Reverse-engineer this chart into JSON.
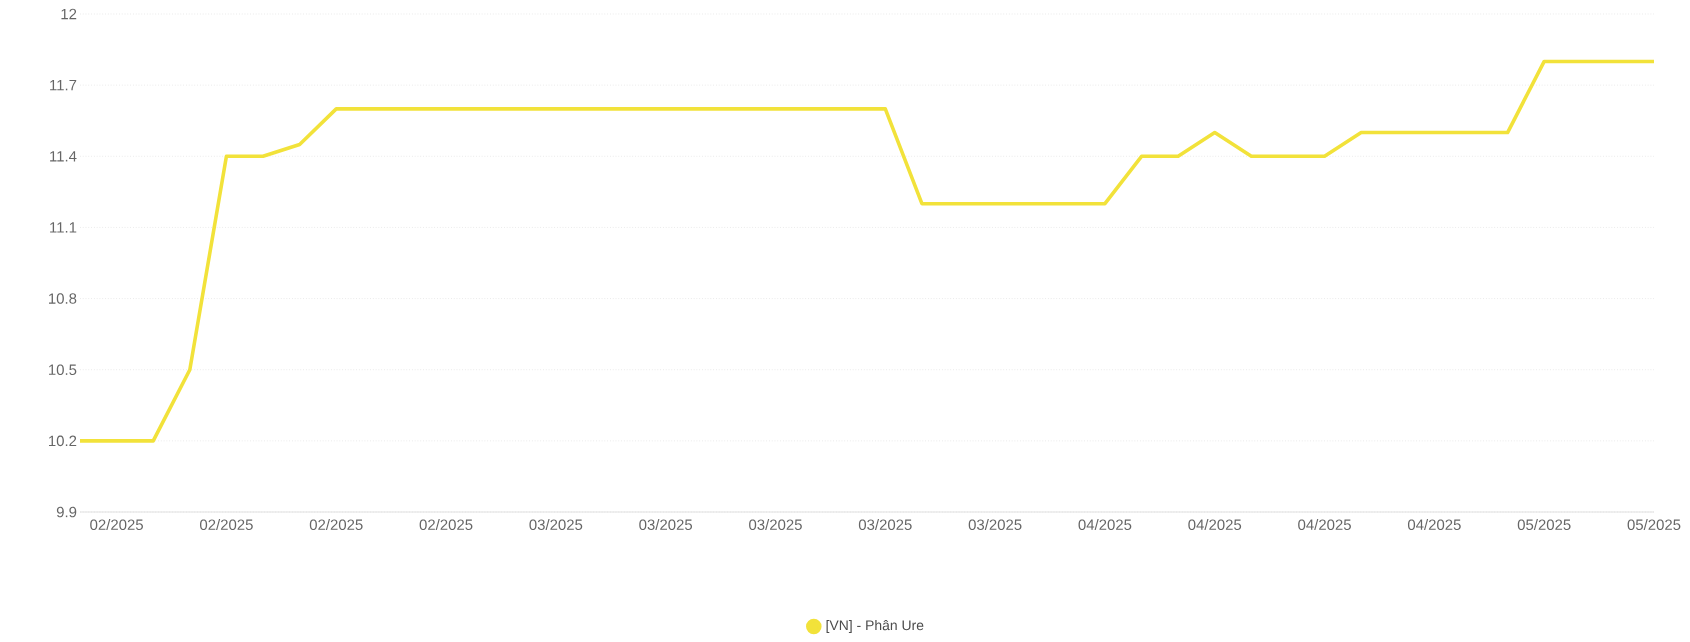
{
  "chart_data": {
    "type": "line",
    "categories": [
      null,
      "02/2025",
      null,
      null,
      "02/2025",
      null,
      null,
      "02/2025",
      null,
      null,
      "02/2025",
      null,
      null,
      "03/2025",
      null,
      null,
      "03/2025",
      null,
      null,
      "03/2025",
      null,
      null,
      "03/2025",
      null,
      null,
      "03/2025",
      null,
      null,
      "04/2025",
      null,
      null,
      "04/2025",
      null,
      null,
      "04/2025",
      null,
      null,
      "04/2025",
      null,
      null,
      "05/2025",
      null,
      null,
      "05/2025"
    ],
    "series": [
      {
        "name": "[VN] - Phân Ure",
        "color": "#f2e23a",
        "values": [
          10.2,
          10.2,
          10.2,
          10.5,
          11.4,
          11.4,
          11.45,
          11.6,
          11.6,
          11.6,
          11.6,
          11.6,
          11.6,
          11.6,
          11.6,
          11.6,
          11.6,
          11.6,
          11.6,
          11.6,
          11.6,
          11.6,
          11.6,
          11.2,
          11.2,
          11.2,
          11.2,
          11.2,
          11.2,
          11.4,
          11.4,
          11.5,
          11.4,
          11.4,
          11.4,
          11.5,
          11.5,
          11.5,
          11.5,
          11.5,
          11.8,
          11.8,
          11.8,
          11.8
        ]
      }
    ],
    "ylim": [
      9.9,
      12
    ],
    "yticks": [
      9.9,
      10.2,
      10.5,
      10.8,
      11.1,
      11.4,
      11.7,
      12
    ],
    "grid": "y",
    "legend": "bottom",
    "marker": "none",
    "line_style": "solid"
  }
}
